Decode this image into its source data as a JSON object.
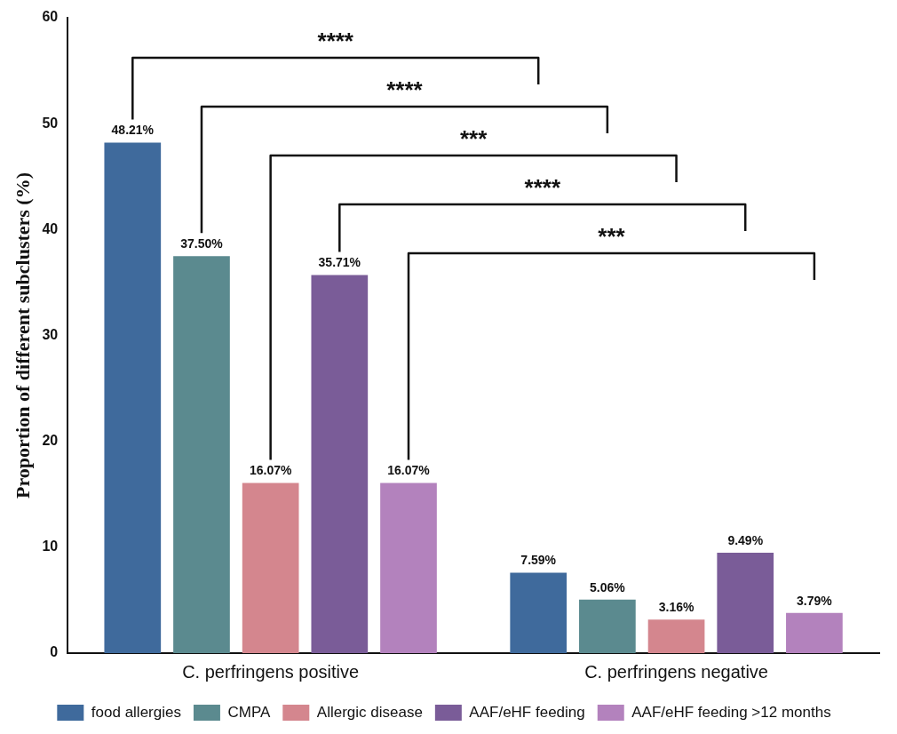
{
  "chart_data": {
    "type": "bar",
    "ylabel": "Proportion of different subclusters (%)",
    "categories": [
      "C. perfringens positive",
      "C. perfringens negative"
    ],
    "series": [
      {
        "name": "food allergies",
        "color": "#3f6a9c",
        "values": [
          48.21,
          7.59
        ],
        "value_labels": [
          "48.21%",
          "7.59%"
        ]
      },
      {
        "name": "CMPA",
        "color": "#5b8a8f",
        "values": [
          37.5,
          5.06
        ],
        "value_labels": [
          "37.50%",
          "5.06%"
        ]
      },
      {
        "name": "Allergic disease",
        "color": "#d4868e",
        "values": [
          16.07,
          3.16
        ],
        "value_labels": [
          "16.07%",
          "3.16%"
        ]
      },
      {
        "name": "AAF/eHF feeding",
        "color": "#7a5c98",
        "values": [
          35.71,
          9.49
        ],
        "value_labels": [
          "35.71%",
          "9.49%"
        ]
      },
      {
        "name": "AAF/eHF feeding >12 months",
        "color": "#b382bd",
        "values": [
          16.07,
          3.79
        ],
        "value_labels": [
          "16.07%",
          "3.79%"
        ]
      }
    ],
    "ylim": [
      0,
      60
    ],
    "yticks": [
      0,
      10,
      20,
      30,
      40,
      50,
      60
    ],
    "grid": false,
    "legend": "bottom",
    "annotations": [
      "****",
      "****",
      "***",
      "****",
      "***"
    ]
  }
}
